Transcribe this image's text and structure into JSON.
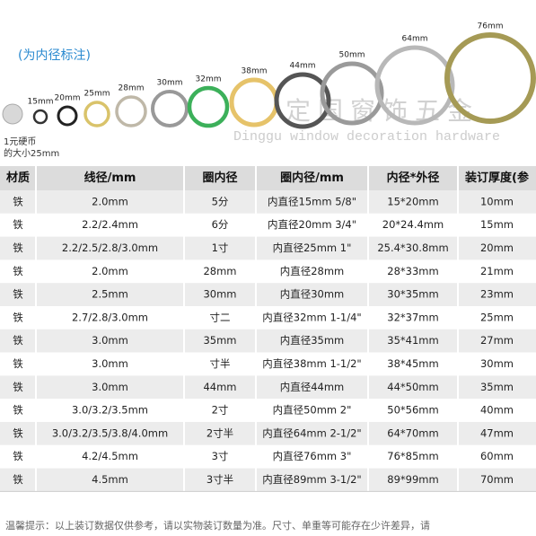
{
  "annotation": "(为内径标注)",
  "ring_labels": [
    "15mm",
    "20mm",
    "25mm",
    "28mm",
    "30mm",
    "32mm",
    "38mm",
    "44mm",
    "50mm",
    "64mm",
    "76mm"
  ],
  "coin": {
    "line1": "1元硬币",
    "line2": "的大小25mm"
  },
  "watermark": {
    "cn": "定国窗饰五金",
    "en": "Dinggu window decoration hardware"
  },
  "table": {
    "header": [
      "材质",
      "线径/mm",
      "圈内径",
      "圈内径/mm",
      "内径*外径",
      "装订厚度(参"
    ],
    "rows": [
      [
        "铁",
        "2.0mm",
        "5分",
        "内直径15mm 5/8\"",
        "15*20mm",
        "10mm"
      ],
      [
        "铁",
        "2.2/2.4mm",
        "6分",
        "内直径20mm 3/4\"",
        "20*24.4mm",
        "15mm"
      ],
      [
        "铁",
        "2.2/2.5/2.8/3.0mm",
        "1寸",
        "内直径25mm 1\"",
        "25.4*30.8mm",
        "20mm"
      ],
      [
        "铁",
        "2.0mm",
        "28mm",
        "内直径28mm",
        "28*33mm",
        "21mm"
      ],
      [
        "铁",
        "2.5mm",
        "30mm",
        "内直径30mm",
        "30*35mm",
        "23mm"
      ],
      [
        "铁",
        "2.7/2.8/3.0mm",
        "寸二",
        "内直径32mm 1-1/4\"",
        "32*37mm",
        "25mm"
      ],
      [
        "铁",
        "3.0mm",
        "35mm",
        "内直径35mm",
        "35*41mm",
        "27mm"
      ],
      [
        "铁",
        "3.0mm",
        "寸半",
        "内直径38mm 1-1/2\"",
        "38*45mm",
        "30mm"
      ],
      [
        "铁",
        "3.0mm",
        "44mm",
        "内直径44mm",
        "44*50mm",
        "35mm"
      ],
      [
        "铁",
        "3.0/3.2/3.5mm",
        "2寸",
        "内直径50mm 2\"",
        "50*56mm",
        "40mm"
      ],
      [
        "铁",
        "3.0/3.2/3.5/3.8/4.0mm",
        "2寸半",
        "内直径64mm 2-1/2\"",
        "64*70mm",
        "47mm"
      ],
      [
        "铁",
        "4.2/4.5mm",
        "3寸",
        "内直径76mm 3\"",
        "76*85mm",
        "60mm"
      ],
      [
        "铁",
        "4.5mm",
        "3寸半",
        "内直径89mm 3-1/2\"",
        "89*99mm",
        "70mm"
      ]
    ]
  },
  "footer": "温馨提示：以上装订数据仅供参考，请以实物装订数量为准。尺寸、单重等可能存在少许差异，请"
}
